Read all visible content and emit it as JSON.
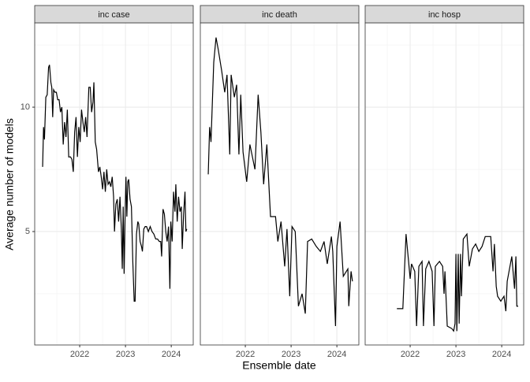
{
  "chart_data": {
    "type": "line",
    "xlabel": "Ensemble date",
    "ylabel": "Average number of models",
    "xlim": [
      2021.017,
      2024.48
    ],
    "ylim": [
      0.44,
      13.39
    ],
    "xticks": [
      2022,
      2023,
      2024
    ],
    "yticks": [
      5,
      10
    ],
    "x_minor_ticks": [
      2021.5,
      2022.5,
      2023.5
    ],
    "y_minor_ticks": [
      2.5,
      7.5,
      12.5
    ],
    "grid": true,
    "color": "#000000",
    "facets": [
      {
        "title": "inc case",
        "x": [
          2021.19,
          2021.21,
          2021.23,
          2021.26,
          2021.29,
          2021.32,
          2021.34,
          2021.37,
          2021.39,
          2021.41,
          2021.43,
          2021.46,
          2021.49,
          2021.52,
          2021.55,
          2021.58,
          2021.61,
          2021.64,
          2021.67,
          2021.7,
          2021.73,
          2021.76,
          2021.8,
          2021.83,
          2021.86,
          2021.89,
          2021.92,
          2021.95,
          2021.98,
          2022.01,
          2022.04,
          2022.07,
          2022.1,
          2022.13,
          2022.16,
          2022.2,
          2022.23,
          2022.26,
          2022.29,
          2022.31,
          2022.34,
          2022.37,
          2022.41,
          2022.44,
          2022.47,
          2022.5,
          2022.53,
          2022.56,
          2022.59,
          2022.62,
          2022.65,
          2022.68,
          2022.71,
          2022.74,
          2022.76,
          2022.79,
          2022.82,
          2022.85,
          2022.88,
          2022.91,
          2022.93,
          2022.95,
          2022.97,
          2022.99,
          2023.01,
          2023.03,
          2023.05,
          2023.07,
          2023.1,
          2023.13,
          2023.16,
          2023.19,
          2023.21,
          2023.24,
          2023.27,
          2023.29,
          2023.32,
          2023.35,
          2023.37,
          2023.4,
          2023.43,
          2023.46,
          2023.5,
          2023.54,
          2023.58,
          2023.62,
          2023.66,
          2023.7,
          2023.74,
          2023.77,
          2023.79,
          2023.82,
          2023.85,
          2023.88,
          2023.91,
          2023.94,
          2023.97,
          2023.99,
          2024.02,
          2024.05,
          2024.08,
          2024.1,
          2024.13,
          2024.16,
          2024.19,
          2024.22,
          2024.24,
          2024.27,
          2024.3,
          2024.32,
          2024.34
        ],
        "values": [
          7.6,
          9.2,
          8.7,
          10.4,
          10.5,
          11.6,
          11.7,
          11.0,
          10.8,
          9.6,
          10.7,
          10.6,
          10.6,
          10.3,
          10.3,
          9.8,
          10.0,
          8.5,
          9.4,
          8.8,
          9.9,
          8.0,
          8.0,
          7.9,
          7.4,
          9.0,
          9.6,
          8.0,
          9.2,
          8.6,
          9.9,
          9.4,
          9.0,
          9.6,
          8.8,
          10.8,
          10.8,
          9.8,
          10.2,
          11.0,
          8.6,
          8.3,
          7.4,
          7.6,
          7.2,
          6.7,
          7.4,
          6.6,
          7.5,
          6.9,
          7.0,
          6.8,
          7.2,
          6.4,
          5.0,
          6.1,
          6.3,
          5.4,
          6.4,
          5.1,
          3.5,
          6.0,
          3.3,
          5.5,
          7.2,
          5.6,
          7.0,
          7.1,
          6.3,
          6.0,
          3.8,
          2.2,
          2.2,
          4.9,
          5.4,
          5.3,
          4.6,
          4.4,
          4.2,
          5.1,
          5.2,
          5.2,
          5.0,
          5.2,
          5.0,
          4.9,
          4.7,
          4.7,
          4.6,
          4.6,
          4.0,
          5.9,
          5.7,
          5.0,
          4.6,
          5.2,
          2.7,
          5.4,
          4.6,
          6.6,
          5.8,
          6.9,
          5.4,
          6.4,
          5.8,
          6.0,
          4.3,
          5.7,
          6.6,
          5.0,
          5.1
        ]
      },
      {
        "title": "inc death",
        "x": [
          2021.19,
          2021.22,
          2021.25,
          2021.31,
          2021.36,
          2021.41,
          2021.48,
          2021.55,
          2021.6,
          2021.66,
          2021.69,
          2021.76,
          2021.81,
          2021.86,
          2021.9,
          2021.95,
          2022.03,
          2022.1,
          2022.21,
          2022.28,
          2022.34,
          2022.4,
          2022.47,
          2022.55,
          2022.66,
          2022.71,
          2022.78,
          2022.86,
          2022.91,
          2022.97,
          2023.02,
          2023.09,
          2023.16,
          2023.24,
          2023.31,
          2023.36,
          2023.45,
          2023.55,
          2023.64,
          2023.72,
          2023.79,
          2023.88,
          2023.91,
          2023.97,
          2024.0,
          2024.07,
          2024.14,
          2024.24,
          2024.26,
          2024.31,
          2024.34
        ],
        "values": [
          7.3,
          9.2,
          8.6,
          11.8,
          12.8,
          12.3,
          11.5,
          10.6,
          11.3,
          8.1,
          11.3,
          10.4,
          10.9,
          8.1,
          10.5,
          8.2,
          7.0,
          8.5,
          7.5,
          10.5,
          9.0,
          6.9,
          8.5,
          5.6,
          5.6,
          4.6,
          5.4,
          3.6,
          5.1,
          2.4,
          5.2,
          5.0,
          2.0,
          2.5,
          1.7,
          4.6,
          4.7,
          4.4,
          4.2,
          4.6,
          3.7,
          4.8,
          4.2,
          1.2,
          4.4,
          5.4,
          3.2,
          3.5,
          2.0,
          3.4,
          3.0
        ]
      },
      {
        "title": "inc hosp",
        "x": [
          2021.71,
          2021.84,
          2021.91,
          2022.0,
          2022.03,
          2022.1,
          2022.14,
          2022.19,
          2022.26,
          2022.29,
          2022.34,
          2022.41,
          2022.48,
          2022.52,
          2022.55,
          2022.64,
          2022.71,
          2022.74,
          2022.76,
          2022.81,
          2022.91,
          2022.95,
          2022.98,
          2023.0,
          2023.02,
          2023.05,
          2023.07,
          2023.1,
          2023.12,
          2023.16,
          2023.24,
          2023.29,
          2023.36,
          2023.43,
          2023.5,
          2023.57,
          2023.64,
          2023.76,
          2023.81,
          2023.84,
          2023.88,
          2023.91,
          2023.98,
          2024.05,
          2024.09,
          2024.12,
          2024.22,
          2024.28,
          2024.31,
          2024.33,
          2024.36
        ],
        "values": [
          1.9,
          1.9,
          4.9,
          3.1,
          3.7,
          3.4,
          1.2,
          3.6,
          3.8,
          1.2,
          3.5,
          3.8,
          3.4,
          1.2,
          3.6,
          3.8,
          3.6,
          2.5,
          3.4,
          1.2,
          1.1,
          1.0,
          1.3,
          4.1,
          1.0,
          4.1,
          1.3,
          4.1,
          2.4,
          4.7,
          4.9,
          3.6,
          4.3,
          4.5,
          4.2,
          4.4,
          4.8,
          4.8,
          3.4,
          4.5,
          2.8,
          2.4,
          2.2,
          2.4,
          1.8,
          3.0,
          4.0,
          2.7,
          4.0,
          2.0,
          2.0
        ]
      }
    ]
  }
}
